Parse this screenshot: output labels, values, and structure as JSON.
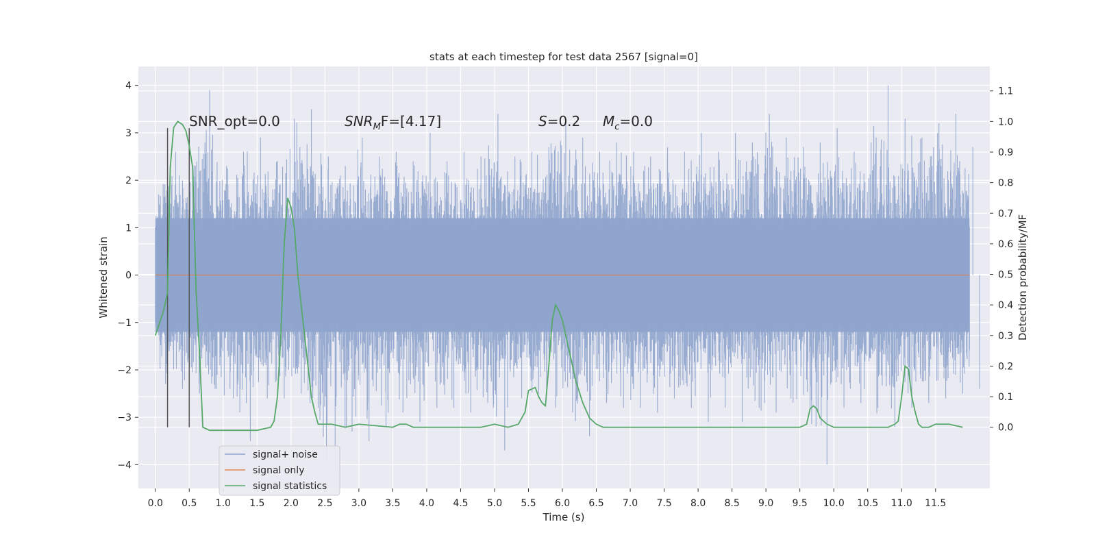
{
  "chart_data": {
    "type": "line",
    "title": "stats at each timestep for test data 2567 [signal=0]",
    "xlabel": "Time (s)",
    "ylabel": "Whitened strain",
    "y2label": "Detection probability/MF",
    "xlim": [
      -0.25,
      12.3
    ],
    "ylim": [
      -4.5,
      4.4
    ],
    "y2lim": [
      -0.2,
      1.18
    ],
    "x_ticks": [
      "0.0",
      "0.5",
      "1.0",
      "1.5",
      "2.0",
      "2.5",
      "3.0",
      "3.5",
      "4.0",
      "4.5",
      "5.0",
      "5.5",
      "6.0",
      "6.5",
      "7.0",
      "7.5",
      "8.0",
      "8.5",
      "9.0",
      "9.5",
      "10.0",
      "10.5",
      "11.0",
      "11.5"
    ],
    "y_ticks": [
      "4",
      "3",
      "2",
      "1",
      "0",
      "−1",
      "−2",
      "−3",
      "−4"
    ],
    "y2_ticks": [
      "1.1",
      "1.0",
      "0.9",
      "0.8",
      "0.7",
      "0.6",
      "0.5",
      "0.4",
      "0.3",
      "0.2",
      "0.1",
      "0.0"
    ],
    "grid": true,
    "legend_position": "lower-left",
    "legend": [
      "signal+ noise",
      "signal only",
      "signal statistics"
    ],
    "colors": {
      "noise": "#8fa4cc",
      "signal_only": "#dd8452",
      "statistics": "#55a868",
      "background": "#eaeaf2",
      "markers": "#555555"
    },
    "annotations": {
      "snr_opt": "SNR_opt=0.0",
      "snr_mf_base": "SNR",
      "snr_mf_sub": "M",
      "snr_mf_rest": "F=[4.17]",
      "s_var": "S",
      "s_val": "=0.2",
      "mc_var": "M",
      "mc_sub": "c",
      "mc_val": "=0.0"
    },
    "marker_lines_x": [
      0.18,
      0.5
    ],
    "series": [
      {
        "name": "signal+ noise",
        "axis": "left",
        "x_range": [
          0.0,
          12.0
        ],
        "envelope_x": [
          0.0,
          0.25,
          0.5,
          0.75,
          1.0,
          1.25,
          1.5,
          1.75,
          2.0,
          2.25,
          2.5,
          2.75,
          3.0,
          3.25,
          3.5,
          3.75,
          4.0,
          4.25,
          4.5,
          4.75,
          5.0,
          5.25,
          5.5,
          5.75,
          6.0,
          6.25,
          6.5,
          6.75,
          7.0,
          7.25,
          7.5,
          7.75,
          8.0,
          8.25,
          8.5,
          8.75,
          9.0,
          9.25,
          9.5,
          9.75,
          10.0,
          10.25,
          10.5,
          10.75,
          11.0,
          11.25,
          11.5,
          11.75,
          12.0
        ],
        "envelope_upper": [
          1.7,
          2.6,
          2.3,
          3.9,
          2.3,
          2.6,
          2.9,
          2.4,
          3.3,
          3.5,
          2.5,
          2.3,
          2.9,
          2.5,
          2.6,
          2.4,
          3.0,
          2.4,
          2.6,
          2.5,
          3.4,
          2.5,
          2.6,
          2.7,
          3.2,
          2.9,
          2.6,
          2.8,
          2.6,
          2.5,
          2.7,
          2.6,
          3.0,
          2.6,
          3.0,
          2.8,
          3.4,
          2.9,
          2.7,
          2.8,
          3.1,
          2.6,
          2.8,
          4.0,
          3.3,
          2.9,
          3.2,
          3.4,
          2.7
        ],
        "envelope_lower": [
          -2.3,
          -2.4,
          -2.5,
          -2.4,
          -2.6,
          -3.5,
          -2.6,
          -2.6,
          -2.5,
          -2.8,
          -4.1,
          -3.3,
          -3.5,
          -3.2,
          -2.9,
          -3.1,
          -2.8,
          -2.8,
          -2.9,
          -2.7,
          -3.7,
          -2.6,
          -2.5,
          -2.8,
          -2.9,
          -3.4,
          -2.7,
          -2.8,
          -2.8,
          -2.9,
          -2.6,
          -2.8,
          -3.1,
          -2.8,
          -3.1,
          -2.8,
          -2.9,
          -2.7,
          -2.8,
          -4.0,
          -2.8,
          -2.7,
          -2.8,
          -3.2,
          -2.8,
          -2.7,
          -2.6,
          -2.5,
          -2.4
        ],
        "band": [
          -1.2,
          1.2
        ]
      },
      {
        "name": "signal only",
        "axis": "left",
        "x": [
          0.0,
          12.0
        ],
        "y": [
          0.0,
          0.0
        ]
      },
      {
        "name": "signal statistics",
        "axis": "right",
        "x": [
          0.0,
          0.12,
          0.18,
          0.22,
          0.27,
          0.33,
          0.4,
          0.45,
          0.5,
          0.55,
          0.6,
          0.65,
          0.7,
          0.8,
          1.0,
          1.2,
          1.5,
          1.7,
          1.75,
          1.8,
          1.85,
          1.9,
          1.95,
          2.0,
          2.05,
          2.1,
          2.2,
          2.3,
          2.35,
          2.4,
          2.5,
          2.6,
          2.8,
          3.0,
          3.5,
          3.6,
          3.7,
          3.8,
          4.0,
          4.5,
          4.8,
          5.0,
          5.2,
          5.35,
          5.45,
          5.5,
          5.6,
          5.65,
          5.7,
          5.75,
          5.8,
          5.85,
          5.9,
          5.95,
          6.0,
          6.05,
          6.1,
          6.2,
          6.3,
          6.4,
          6.5,
          6.6,
          6.7,
          7.0,
          8.0,
          9.0,
          9.5,
          9.6,
          9.65,
          9.7,
          9.75,
          9.8,
          9.9,
          10.0,
          10.2,
          10.5,
          10.8,
          10.9,
          10.95,
          11.0,
          11.05,
          11.1,
          11.15,
          11.2,
          11.25,
          11.3,
          11.4,
          11.5,
          11.6,
          11.7,
          11.9
        ],
        "y": [
          0.3,
          0.38,
          0.44,
          0.85,
          0.98,
          1.0,
          0.99,
          0.97,
          0.92,
          0.85,
          0.45,
          0.25,
          0.0,
          -0.01,
          -0.01,
          -0.01,
          -0.01,
          0.0,
          0.02,
          0.1,
          0.3,
          0.6,
          0.75,
          0.72,
          0.65,
          0.5,
          0.3,
          0.1,
          0.05,
          0.01,
          0.01,
          0.01,
          0.0,
          0.01,
          0.0,
          0.01,
          0.01,
          0.0,
          0.0,
          0.0,
          0.0,
          0.01,
          0.0,
          0.01,
          0.05,
          0.12,
          0.13,
          0.1,
          0.08,
          0.07,
          0.2,
          0.35,
          0.4,
          0.38,
          0.35,
          0.3,
          0.25,
          0.15,
          0.08,
          0.03,
          0.01,
          0.0,
          0.0,
          0.0,
          0.0,
          0.0,
          0.0,
          0.01,
          0.06,
          0.07,
          0.06,
          0.03,
          0.01,
          0.0,
          0.0,
          0.0,
          0.0,
          0.01,
          0.02,
          0.1,
          0.2,
          0.19,
          0.1,
          0.05,
          0.01,
          0.0,
          0.0,
          0.01,
          0.01,
          0.01,
          0.0
        ]
      }
    ]
  }
}
